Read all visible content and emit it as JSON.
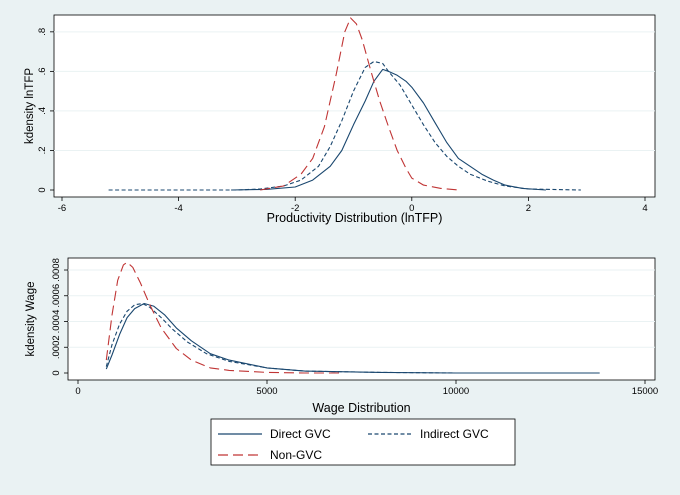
{
  "chart_data": [
    {
      "type": "line",
      "xlabel": "Productivity Distribution (lnTFP)",
      "ylabel": "kdensity lnTFP",
      "xlim": [
        -6,
        4
      ],
      "ylim": [
        0,
        0.87
      ],
      "xticks": [
        -6,
        -4,
        -2,
        0,
        2,
        4
      ],
      "xtick_labels": [
        "-6",
        "-4",
        "-2",
        "0",
        "2",
        "4"
      ],
      "yticks": [
        0,
        0.2,
        0.4,
        0.6,
        0.8
      ],
      "ytick_labels": [
        "0",
        ".2",
        ".4",
        ".6",
        ".8"
      ],
      "grid": "horizontal",
      "series": [
        {
          "name": "Direct GVC",
          "color": "#1a476f",
          "dash": "solid",
          "x": [
            -3.1,
            -2.5,
            -2.0,
            -1.7,
            -1.4,
            -1.2,
            -1.0,
            -0.8,
            -0.65,
            -0.5,
            -0.4,
            -0.25,
            -0.1,
            0.0,
            0.2,
            0.4,
            0.6,
            0.8,
            1.0,
            1.2,
            1.4,
            1.6,
            1.9,
            2.3
          ],
          "y": [
            0.0,
            0.003,
            0.015,
            0.05,
            0.12,
            0.2,
            0.33,
            0.45,
            0.55,
            0.61,
            0.6,
            0.58,
            0.55,
            0.52,
            0.44,
            0.34,
            0.24,
            0.16,
            0.12,
            0.08,
            0.05,
            0.025,
            0.008,
            0.0
          ]
        },
        {
          "name": "Indirect GVC",
          "color": "#1a476f",
          "dash": "dotted",
          "x": [
            -5.2,
            -3.0,
            -2.6,
            -2.2,
            -1.9,
            -1.6,
            -1.4,
            -1.2,
            -1.0,
            -0.8,
            -0.65,
            -0.5,
            -0.4,
            -0.2,
            0.0,
            0.2,
            0.4,
            0.6,
            0.8,
            1.0,
            1.3,
            1.6,
            2.0,
            2.9
          ],
          "y": [
            0.0,
            0.0,
            0.005,
            0.02,
            0.05,
            0.12,
            0.22,
            0.35,
            0.5,
            0.62,
            0.65,
            0.64,
            0.6,
            0.53,
            0.43,
            0.33,
            0.24,
            0.17,
            0.12,
            0.08,
            0.045,
            0.02,
            0.005,
            0.0
          ]
        },
        {
          "name": "Non-GVC",
          "color": "#c03535",
          "dash": "longdash",
          "x": [
            -2.6,
            -2.2,
            -1.9,
            -1.7,
            -1.5,
            -1.3,
            -1.15,
            -1.05,
            -0.95,
            -0.85,
            -0.7,
            -0.55,
            -0.4,
            -0.25,
            -0.1,
            0.0,
            0.2,
            0.5,
            0.8
          ],
          "y": [
            0.0,
            0.02,
            0.08,
            0.16,
            0.32,
            0.58,
            0.8,
            0.87,
            0.84,
            0.76,
            0.6,
            0.45,
            0.32,
            0.2,
            0.11,
            0.06,
            0.025,
            0.008,
            0.0
          ]
        }
      ]
    },
    {
      "type": "line",
      "xlabel": "Wage Distribution",
      "ylabel": "kdensity Wage",
      "xlim": [
        0,
        15000
      ],
      "ylim": [
        0,
        0.00087
      ],
      "xticks": [
        0,
        5000,
        10000,
        15000
      ],
      "xtick_labels": [
        "0",
        "5000",
        "10000",
        "15000"
      ],
      "yticks": [
        0,
        0.0002,
        0.0004,
        0.0006,
        0.0008
      ],
      "ytick_labels": [
        "0",
        ".0002",
        ".0004",
        ".0006",
        ".0008"
      ],
      "grid": "horizontal",
      "series": [
        {
          "name": "Direct GVC",
          "color": "#1a476f",
          "dash": "solid",
          "x": [
            750,
            900,
            1100,
            1300,
            1500,
            1750,
            2000,
            2300,
            2600,
            3000,
            3500,
            4000,
            5000,
            6000,
            8000,
            10000,
            12000,
            13800
          ],
          "y": [
            3e-05,
            0.00014,
            0.0003,
            0.00043,
            0.0005,
            0.00054,
            0.00052,
            0.00045,
            0.00035,
            0.00025,
            0.00015,
            0.0001,
            4e-05,
            1.5e-05,
            5e-06,
            0.0,
            0.0,
            0.0
          ]
        },
        {
          "name": "Indirect GVC",
          "color": "#1a476f",
          "dash": "dotted",
          "x": [
            750,
            900,
            1100,
            1300,
            1500,
            1700,
            1900,
            2200,
            2500,
            2900,
            3400,
            4000,
            5000,
            6000,
            8000,
            10000,
            12000,
            13800
          ],
          "y": [
            5e-05,
            0.00022,
            0.00038,
            0.00048,
            0.00053,
            0.00054,
            0.00051,
            0.00043,
            0.00034,
            0.00024,
            0.00015,
            9e-05,
            4e-05,
            1.5e-05,
            5e-06,
            0.0,
            0.0,
            0.0
          ]
        },
        {
          "name": "Non-GVC",
          "color": "#c03535",
          "dash": "longdash",
          "x": [
            750,
            900,
            1050,
            1200,
            1300,
            1450,
            1650,
            1900,
            2200,
            2600,
            3000,
            3500,
            4000,
            5000,
            6000,
            7000
          ],
          "y": [
            0.0001,
            0.00045,
            0.00072,
            0.00084,
            0.00086,
            0.00082,
            0.0007,
            0.00053,
            0.00035,
            0.00019,
            0.0001,
            4e-05,
            2e-05,
            5e-06,
            0.0,
            0.0
          ]
        }
      ]
    }
  ],
  "legend": {
    "position": "bottom",
    "entries": [
      "Direct GVC",
      "Indirect GVC",
      "Non-GVC"
    ]
  }
}
